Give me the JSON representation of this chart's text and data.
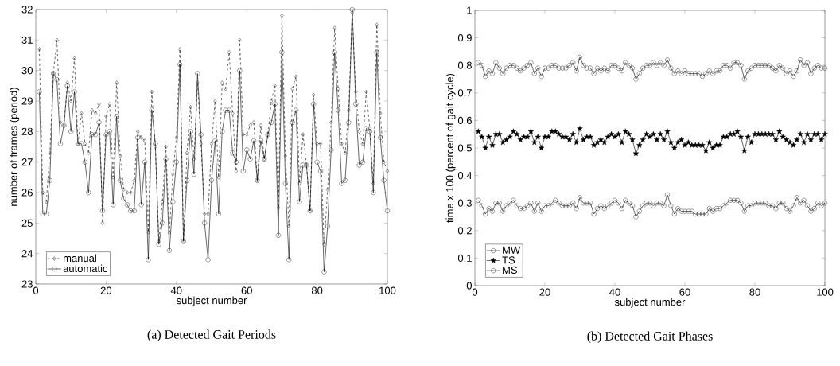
{
  "chart_data": [
    {
      "type": "line",
      "title": "(a) Detected Gait Periods",
      "xlabel": "subject number",
      "ylabel": "number of frames (period)",
      "x": [
        1,
        2,
        3,
        4,
        5,
        6,
        7,
        8,
        9,
        10,
        11,
        12,
        13,
        14,
        15,
        16,
        17,
        18,
        19,
        20,
        21,
        22,
        23,
        24,
        25,
        26,
        27,
        28,
        29,
        30,
        31,
        32,
        33,
        34,
        35,
        36,
        37,
        38,
        39,
        40,
        41,
        42,
        43,
        44,
        45,
        46,
        47,
        48,
        49,
        50,
        51,
        52,
        53,
        54,
        55,
        56,
        57,
        58,
        59,
        60,
        61,
        62,
        63,
        64,
        65,
        66,
        67,
        68,
        69,
        70,
        71,
        72,
        73,
        74,
        75,
        76,
        77,
        78,
        79,
        80,
        81,
        82,
        83,
        84,
        85,
        86,
        87,
        88,
        89,
        90,
        91,
        92,
        93,
        94,
        95,
        96,
        97,
        98,
        99,
        100
      ],
      "xlim": [
        0,
        100
      ],
      "xticks": [
        0,
        20,
        40,
        60,
        80,
        100
      ],
      "ylim": [
        23,
        32
      ],
      "yticks": [
        23,
        24,
        25,
        26,
        27,
        28,
        29,
        30,
        31,
        32
      ],
      "legend": "bottom left",
      "series": [
        {
          "name": "manual",
          "color": "#000000",
          "marker": "diamond",
          "line_style": "dashed",
          "values": [
            30.7,
            26.0,
            25.7,
            27.3,
            29.9,
            31.0,
            28.3,
            28.2,
            29.6,
            29.0,
            30.4,
            27.6,
            28.6,
            27.6,
            27.3,
            28.7,
            28.6,
            28.9,
            25.0,
            28.5,
            28.9,
            26.5,
            29.6,
            27.2,
            26.1,
            26.0,
            26.0,
            26.4,
            28.0,
            27.8,
            27.7,
            24.7,
            29.3,
            27.5,
            24.4,
            25.7,
            27.5,
            24.7,
            26.6,
            27.8,
            30.7,
            24.4,
            27.3,
            28.8,
            27.1,
            29.6,
            27.6,
            25.3,
            25.3,
            27.6,
            29.0,
            26.5,
            29.6,
            29.4,
            30.6,
            28.6,
            26.7,
            31.0,
            27.9,
            27.9,
            28.2,
            28.3,
            26.4,
            28.2,
            27.1,
            27.9,
            29.0,
            29.5,
            25.5,
            31.8,
            27.2,
            24.9,
            29.4,
            29.8,
            26.3,
            27.9,
            26.9,
            25.4,
            29.2,
            27.6,
            27.6,
            24.3,
            26.1,
            28.3,
            31.4,
            29.4,
            27.6,
            27.3,
            28.7,
            31.9,
            29.3,
            28.0,
            27.6,
            29.3,
            28.1,
            26.3,
            31.5,
            28.6,
            27.0,
            26.7
          ]
        },
        {
          "name": "automatic",
          "color": "#000000",
          "marker": "circle",
          "line_style": "solid",
          "values": [
            29.3,
            25.3,
            25.3,
            26.4,
            29.9,
            29.7,
            27.6,
            28.2,
            29.5,
            28.0,
            29.3,
            27.6,
            27.6,
            27.0,
            26.0,
            27.9,
            27.9,
            28.3,
            25.4,
            27.9,
            28.0,
            25.6,
            28.5,
            26.4,
            25.8,
            25.6,
            25.4,
            25.4,
            27.8,
            25.6,
            27.0,
            23.8,
            28.7,
            27.6,
            24.3,
            25.0,
            27.1,
            24.1,
            25.7,
            27.0,
            30.2,
            24.4,
            26.4,
            28.0,
            26.6,
            29.9,
            27.9,
            25.0,
            23.8,
            26.4,
            27.7,
            25.3,
            28.0,
            28.7,
            28.7,
            27.3,
            27.0,
            30.0,
            26.7,
            27.4,
            27.1,
            27.7,
            26.4,
            27.7,
            27.1,
            27.9,
            28.3,
            28.9,
            24.6,
            30.6,
            26.3,
            23.8,
            28.3,
            28.7,
            25.7,
            26.9,
            26.9,
            25.4,
            28.9,
            27.0,
            26.7,
            23.4,
            24.9,
            27.4,
            30.6,
            28.7,
            26.3,
            26.4,
            28.3,
            32.0,
            28.9,
            26.9,
            27.0,
            28.1,
            28.0,
            26.0,
            30.6,
            27.8,
            26.4,
            25.4
          ]
        }
      ]
    },
    {
      "type": "line",
      "title": "(b) Detected Gait Phases",
      "xlabel": "subject number",
      "ylabel": "time x 100 (percent of gait cycle)",
      "x": [
        1,
        2,
        3,
        4,
        5,
        6,
        7,
        8,
        9,
        10,
        11,
        12,
        13,
        14,
        15,
        16,
        17,
        18,
        19,
        20,
        21,
        22,
        23,
        24,
        25,
        26,
        27,
        28,
        29,
        30,
        31,
        32,
        33,
        34,
        35,
        36,
        37,
        38,
        39,
        40,
        41,
        42,
        43,
        44,
        45,
        46,
        47,
        48,
        49,
        50,
        51,
        52,
        53,
        54,
        55,
        56,
        57,
        58,
        59,
        60,
        61,
        62,
        63,
        64,
        65,
        66,
        67,
        68,
        69,
        70,
        71,
        72,
        73,
        74,
        75,
        76,
        77,
        78,
        79,
        80,
        81,
        82,
        83,
        84,
        85,
        86,
        87,
        88,
        89,
        90,
        91,
        92,
        93,
        94,
        95,
        96,
        97,
        98,
        99,
        100
      ],
      "xlim": [
        0,
        100
      ],
      "xticks": [
        0,
        20,
        40,
        60,
        80,
        100
      ],
      "ylim": [
        0,
        1
      ],
      "yticks": [
        0,
        0.1,
        0.2,
        0.3,
        0.4,
        0.5,
        0.6,
        0.7,
        0.8,
        0.9,
        1
      ],
      "legend": "bottom left",
      "series": [
        {
          "name": "MW",
          "color": "#000000",
          "marker": "circle",
          "line_style": "solid",
          "values": [
            0.81,
            0.8,
            0.76,
            0.78,
            0.77,
            0.81,
            0.79,
            0.77,
            0.79,
            0.8,
            0.8,
            0.79,
            0.78,
            0.79,
            0.8,
            0.81,
            0.77,
            0.79,
            0.76,
            0.79,
            0.79,
            0.8,
            0.8,
            0.79,
            0.79,
            0.79,
            0.8,
            0.81,
            0.78,
            0.83,
            0.8,
            0.79,
            0.79,
            0.77,
            0.79,
            0.78,
            0.79,
            0.78,
            0.8,
            0.8,
            0.79,
            0.78,
            0.81,
            0.8,
            0.79,
            0.75,
            0.77,
            0.79,
            0.8,
            0.8,
            0.81,
            0.8,
            0.81,
            0.8,
            0.82,
            0.79,
            0.77,
            0.78,
            0.77,
            0.78,
            0.77,
            0.77,
            0.77,
            0.77,
            0.76,
            0.77,
            0.78,
            0.77,
            0.78,
            0.78,
            0.8,
            0.8,
            0.79,
            0.81,
            0.81,
            0.8,
            0.75,
            0.78,
            0.79,
            0.8,
            0.8,
            0.8,
            0.8,
            0.8,
            0.79,
            0.78,
            0.8,
            0.79,
            0.77,
            0.78,
            0.76,
            0.78,
            0.82,
            0.8,
            0.81,
            0.77,
            0.79,
            0.8,
            0.79,
            0.79
          ]
        },
        {
          "name": "TS",
          "color": "#000000",
          "marker": "star",
          "line_style": "solid",
          "values": [
            0.56,
            0.54,
            0.5,
            0.54,
            0.51,
            0.55,
            0.55,
            0.52,
            0.53,
            0.54,
            0.56,
            0.55,
            0.53,
            0.54,
            0.54,
            0.56,
            0.52,
            0.54,
            0.5,
            0.54,
            0.54,
            0.56,
            0.56,
            0.55,
            0.54,
            0.54,
            0.53,
            0.55,
            0.52,
            0.57,
            0.53,
            0.54,
            0.54,
            0.51,
            0.52,
            0.53,
            0.52,
            0.54,
            0.55,
            0.54,
            0.55,
            0.52,
            0.56,
            0.55,
            0.53,
            0.48,
            0.51,
            0.53,
            0.55,
            0.54,
            0.55,
            0.53,
            0.55,
            0.53,
            0.56,
            0.52,
            0.5,
            0.52,
            0.53,
            0.51,
            0.52,
            0.51,
            0.51,
            0.51,
            0.51,
            0.49,
            0.52,
            0.5,
            0.51,
            0.51,
            0.54,
            0.54,
            0.55,
            0.55,
            0.56,
            0.54,
            0.49,
            0.54,
            0.52,
            0.55,
            0.55,
            0.55,
            0.55,
            0.55,
            0.55,
            0.53,
            0.56,
            0.54,
            0.53,
            0.52,
            0.51,
            0.53,
            0.55,
            0.52,
            0.55,
            0.53,
            0.55,
            0.55,
            0.53,
            0.55
          ]
        },
        {
          "name": "MS",
          "color": "#000000",
          "marker": "circle",
          "line_style": "solid",
          "values": [
            0.31,
            0.29,
            0.26,
            0.28,
            0.27,
            0.3,
            0.3,
            0.27,
            0.29,
            0.3,
            0.31,
            0.29,
            0.28,
            0.28,
            0.29,
            0.3,
            0.27,
            0.3,
            0.27,
            0.29,
            0.29,
            0.3,
            0.31,
            0.3,
            0.29,
            0.29,
            0.29,
            0.3,
            0.28,
            0.32,
            0.3,
            0.3,
            0.3,
            0.26,
            0.28,
            0.29,
            0.28,
            0.29,
            0.3,
            0.31,
            0.3,
            0.28,
            0.31,
            0.3,
            0.29,
            0.25,
            0.27,
            0.29,
            0.3,
            0.3,
            0.29,
            0.3,
            0.3,
            0.29,
            0.33,
            0.29,
            0.26,
            0.28,
            0.27,
            0.27,
            0.27,
            0.27,
            0.26,
            0.26,
            0.26,
            0.26,
            0.28,
            0.27,
            0.28,
            0.28,
            0.29,
            0.3,
            0.31,
            0.31,
            0.31,
            0.3,
            0.27,
            0.29,
            0.29,
            0.3,
            0.3,
            0.3,
            0.3,
            0.29,
            0.29,
            0.28,
            0.3,
            0.3,
            0.28,
            0.27,
            0.29,
            0.32,
            0.3,
            0.31,
            0.29,
            0.27,
            0.28,
            0.3,
            0.29,
            0.3
          ]
        }
      ]
    }
  ]
}
